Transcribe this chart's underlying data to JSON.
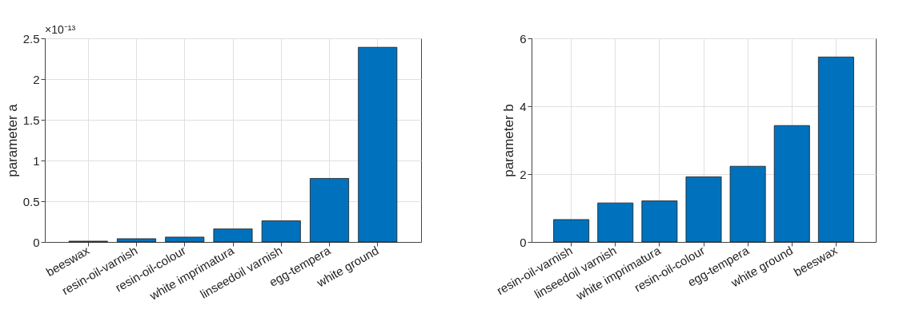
{
  "chart_data": [
    {
      "type": "bar",
      "ylabel": "parameter a",
      "categories": [
        "beeswax",
        "resin-oil-varnish",
        "resin-oil-colour",
        "white imprimatura",
        "linseedoil varnish",
        "egg-tempera",
        "white ground"
      ],
      "values": [
        0.01,
        0.04,
        0.06,
        0.16,
        0.26,
        0.78,
        2.39
      ],
      "color": "#0072bd",
      "ylim": [
        0,
        2.5
      ],
      "yticks": [
        0,
        0.5,
        1,
        1.5,
        2,
        2.5
      ],
      "grid": true,
      "annotations": [
        "×10⁻¹³"
      ]
    },
    {
      "type": "bar",
      "ylabel": "parameter b",
      "categories": [
        "resin-oil-varnish",
        "linseedoil varnish",
        "white imprimatura",
        "resin-oil-colour",
        "egg-tempera",
        "white ground",
        "beeswax"
      ],
      "values": [
        0.66,
        1.15,
        1.21,
        1.92,
        2.23,
        3.43,
        5.45
      ],
      "color": "#0072bd",
      "ylim": [
        0,
        6
      ],
      "yticks": [
        0,
        2,
        4,
        6
      ],
      "grid": true
    }
  ]
}
